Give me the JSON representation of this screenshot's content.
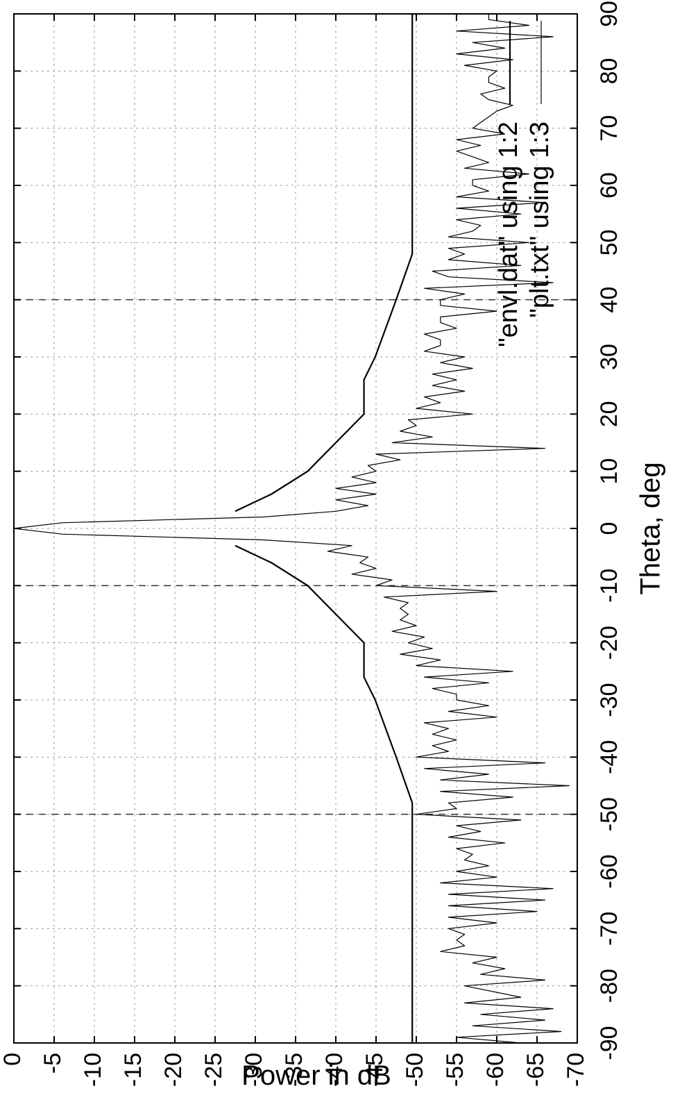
{
  "chart_data": {
    "type": "line",
    "orientation": "rotated-90-clockwise",
    "xlabel": "Theta, deg",
    "ylabel": "Power in dB",
    "xlim": [
      -90,
      90
    ],
    "ylim": [
      -70,
      0
    ],
    "grid": true,
    "legend_placement": "top-right",
    "x_ticks": [
      "-90",
      "-80",
      "-70",
      "-60",
      "-50",
      "-40",
      "-30",
      "-20",
      "-10",
      "0",
      "10",
      "20",
      "30",
      "40",
      "50",
      "60",
      "70",
      "80",
      "90"
    ],
    "y_ticks": [
      "0",
      "-5",
      "-10",
      "-15",
      "-20",
      "-25",
      "-30",
      "-35",
      "-40",
      "-45",
      "-50",
      "-55",
      "-60",
      "-65",
      "-70"
    ],
    "series": [
      {
        "name": "\"plt.txt\" using 1:3",
        "style": "thin-line",
        "description_points": [
          [
            -90,
            -63
          ],
          [
            -89,
            -55
          ],
          [
            -88,
            -68
          ],
          [
            -87,
            -57
          ],
          [
            -86,
            -66
          ],
          [
            -85,
            -58
          ],
          [
            -84,
            -67
          ],
          [
            -83,
            -56
          ],
          [
            -82,
            -63
          ],
          [
            -80,
            -56
          ],
          [
            -79,
            -66
          ],
          [
            -78,
            -58
          ],
          [
            -77,
            -61
          ],
          [
            -76,
            -57
          ],
          [
            -75,
            -60
          ],
          [
            -74,
            -53
          ],
          [
            -73,
            -56
          ],
          [
            -72,
            -55
          ],
          [
            -71,
            -56
          ],
          [
            -70,
            -54
          ],
          [
            -69,
            -60
          ],
          [
            -68,
            -54
          ],
          [
            -67,
            -65
          ],
          [
            -66,
            -54
          ],
          [
            -65,
            -66
          ],
          [
            -64,
            -54
          ],
          [
            -63,
            -67
          ],
          [
            -62,
            -53
          ],
          [
            -61,
            -60
          ],
          [
            -60,
            -55
          ],
          [
            -59,
            -59
          ],
          [
            -58,
            -56
          ],
          [
            -57,
            -57
          ],
          [
            -56,
            -55
          ],
          [
            -55,
            -61
          ],
          [
            -54,
            -54
          ],
          [
            -53,
            -58
          ],
          [
            -52,
            -55
          ],
          [
            -51,
            -63
          ],
          [
            -50,
            -50
          ],
          [
            -49,
            -55
          ],
          [
            -48,
            -54
          ],
          [
            -47,
            -62
          ],
          [
            -46,
            -53
          ],
          [
            -45,
            -69
          ],
          [
            -44,
            -53
          ],
          [
            -43,
            -59
          ],
          [
            -42,
            -51
          ],
          [
            -41,
            -66
          ],
          [
            -40,
            -50
          ],
          [
            -39,
            -54
          ],
          [
            -38,
            -52
          ],
          [
            -37,
            -55
          ],
          [
            -36,
            -52
          ],
          [
            -35,
            -54
          ],
          [
            -34,
            -51
          ],
          [
            -33,
            -60
          ],
          [
            -32,
            -54
          ],
          [
            -31,
            -59
          ],
          [
            -30,
            -55
          ],
          [
            -29,
            -55
          ],
          [
            -28,
            -52
          ],
          [
            -27,
            -59
          ],
          [
            -26,
            -51
          ],
          [
            -25,
            -62
          ],
          [
            -24,
            -50
          ],
          [
            -23,
            -53
          ],
          [
            -22,
            -48
          ],
          [
            -21,
            -52
          ],
          [
            -20,
            -49
          ],
          [
            -19,
            -51
          ],
          [
            -18,
            -47
          ],
          [
            -17,
            -50
          ],
          [
            -16,
            -48
          ],
          [
            -15,
            -49
          ],
          [
            -14,
            -48
          ],
          [
            -13,
            -49
          ],
          [
            -12,
            -46
          ],
          [
            -11,
            -60
          ],
          [
            -10,
            -45
          ],
          [
            -9,
            -47
          ],
          [
            -8,
            -42
          ],
          [
            -7,
            -45
          ],
          [
            -6,
            -43
          ],
          [
            -5,
            -44
          ],
          [
            -4,
            -39
          ],
          [
            -3,
            -42
          ],
          [
            -2,
            -31
          ],
          [
            -1,
            -6
          ],
          [
            0,
            0
          ],
          [
            1,
            -6
          ],
          [
            2,
            -31
          ],
          [
            3,
            -40
          ],
          [
            4,
            -44
          ],
          [
            5,
            -40
          ],
          [
            6,
            -45
          ],
          [
            7,
            -40
          ],
          [
            8,
            -45
          ],
          [
            9,
            -42
          ],
          [
            10,
            -45
          ],
          [
            11,
            -44
          ],
          [
            12,
            -48
          ],
          [
            13,
            -45
          ],
          [
            14,
            -66
          ],
          [
            15,
            -47
          ],
          [
            16,
            -52
          ],
          [
            17,
            -48
          ],
          [
            18,
            -50
          ],
          [
            19,
            -49
          ],
          [
            20,
            -57
          ],
          [
            21,
            -50
          ],
          [
            22,
            -53
          ],
          [
            23,
            -51
          ],
          [
            24,
            -56
          ],
          [
            25,
            -52
          ],
          [
            26,
            -55
          ],
          [
            27,
            -52
          ],
          [
            28,
            -57
          ],
          [
            29,
            -53
          ],
          [
            30,
            -56
          ],
          [
            31,
            -51
          ],
          [
            32,
            -53
          ],
          [
            33,
            -53
          ],
          [
            34,
            -51
          ],
          [
            35,
            -55
          ],
          [
            36,
            -53
          ],
          [
            37,
            -53
          ],
          [
            38,
            -60
          ],
          [
            39,
            -53
          ],
          [
            40,
            -53
          ],
          [
            41,
            -56
          ],
          [
            42,
            -51
          ],
          [
            43,
            -67
          ],
          [
            44,
            -54
          ],
          [
            45,
            -52
          ],
          [
            46,
            -63
          ],
          [
            47,
            -54
          ],
          [
            48,
            -56
          ],
          [
            49,
            -54
          ],
          [
            50,
            -64
          ],
          [
            51,
            -54
          ],
          [
            52,
            -57
          ],
          [
            53,
            -58
          ],
          [
            54,
            -55
          ],
          [
            55,
            -63
          ],
          [
            56,
            -55
          ],
          [
            57,
            -66
          ],
          [
            58,
            -55
          ],
          [
            59,
            -59
          ],
          [
            60,
            -57
          ],
          [
            61,
            -57
          ],
          [
            62,
            -64
          ],
          [
            63,
            -56
          ],
          [
            64,
            -59
          ],
          [
            65,
            -57
          ],
          [
            66,
            -55
          ],
          [
            67,
            -58
          ],
          [
            68,
            -55
          ],
          [
            69,
            -61
          ],
          [
            70,
            -57
          ],
          [
            71,
            -58
          ],
          [
            72,
            -59
          ],
          [
            73,
            -60
          ],
          [
            74,
            -62
          ],
          [
            75,
            -59
          ],
          [
            76,
            -58
          ],
          [
            77,
            -61
          ],
          [
            78,
            -59
          ],
          [
            79,
            -59
          ],
          [
            80,
            -60
          ],
          [
            81,
            -56
          ],
          [
            82,
            -62
          ],
          [
            83,
            -55
          ],
          [
            84,
            -61
          ],
          [
            85,
            -57
          ],
          [
            86,
            -67
          ],
          [
            87,
            -55
          ],
          [
            88,
            -64
          ],
          [
            89,
            -59
          ],
          [
            90,
            -59
          ]
        ]
      },
      {
        "name": "\"envl.dat\" using 1:2",
        "style": "solid-line",
        "segments": [
          [
            [
              -90,
              -49.5
            ],
            [
              -48,
              -49.5
            ],
            [
              -40,
              -47.5
            ],
            [
              -30,
              -44.9
            ],
            [
              -26,
              -43.5
            ],
            [
              -20,
              -43.5
            ],
            [
              -10,
              -36.5
            ],
            [
              -6,
              -32
            ],
            [
              -3,
              -27.5
            ]
          ],
          [
            [
              3,
              -27.5
            ],
            [
              6,
              -32
            ],
            [
              10,
              -36.5
            ],
            [
              20,
              -43.5
            ],
            [
              26,
              -43.5
            ],
            [
              30,
              -44.9
            ],
            [
              40,
              -47.5
            ],
            [
              48,
              -49.5
            ],
            [
              90,
              -49.5
            ]
          ]
        ]
      }
    ],
    "reference_lines": {
      "dashed_theta": [
        -50,
        -10,
        40
      ],
      "solid_level": -49.5
    }
  }
}
